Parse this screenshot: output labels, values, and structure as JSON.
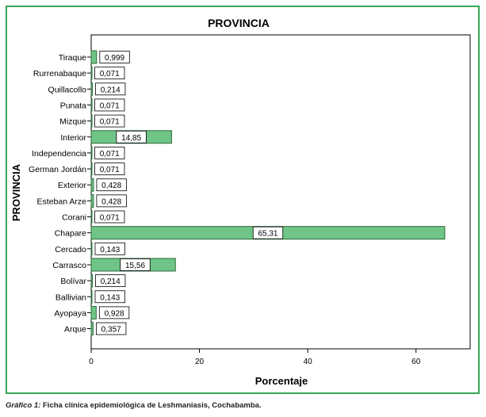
{
  "chart_data": {
    "type": "bar",
    "orientation": "horizontal",
    "title": "PROVINCIA",
    "xlabel": "Porcentaje",
    "ylabel": "PROVINCIA",
    "xlim": [
      0,
      70
    ],
    "xticks": [
      0,
      20,
      40,
      60
    ],
    "grid": false,
    "bar_color": "#6fc487",
    "bar_edge_color": "#2f6b3c",
    "categories": [
      "Tiraque",
      "Rurrenabaque",
      "Quillacollo",
      "Punata",
      "Mizque",
      "Interior",
      "Independencia",
      "German Jordán",
      "Exterior",
      "Esteban Arze",
      "Corani",
      "Chapare",
      "Cercado",
      "Carrasco",
      "Bolívar",
      "Ballivian",
      "Ayopaya",
      "Arque"
    ],
    "values": [
      0.999,
      0.071,
      0.214,
      0.071,
      0.071,
      14.85,
      0.071,
      0.071,
      0.428,
      0.428,
      0.071,
      65.31,
      0.143,
      15.56,
      0.214,
      0.143,
      0.928,
      0.357
    ],
    "data_labels": [
      "0,999",
      "0,071",
      "0,214",
      "0,071",
      "0,071",
      "14,85",
      "0,071",
      "0,071",
      "0,428",
      "0,428",
      "0,071",
      "65,31",
      "0,143",
      "15,56",
      "0,214",
      "0,143",
      "0,928",
      "0,357"
    ]
  },
  "caption": {
    "label": "Gráfico 1:",
    "text": "Ficha clínica epidemiológica de Leshmaniasis, Cochabamba."
  },
  "colors": {
    "frame_border": "#3aa655"
  }
}
